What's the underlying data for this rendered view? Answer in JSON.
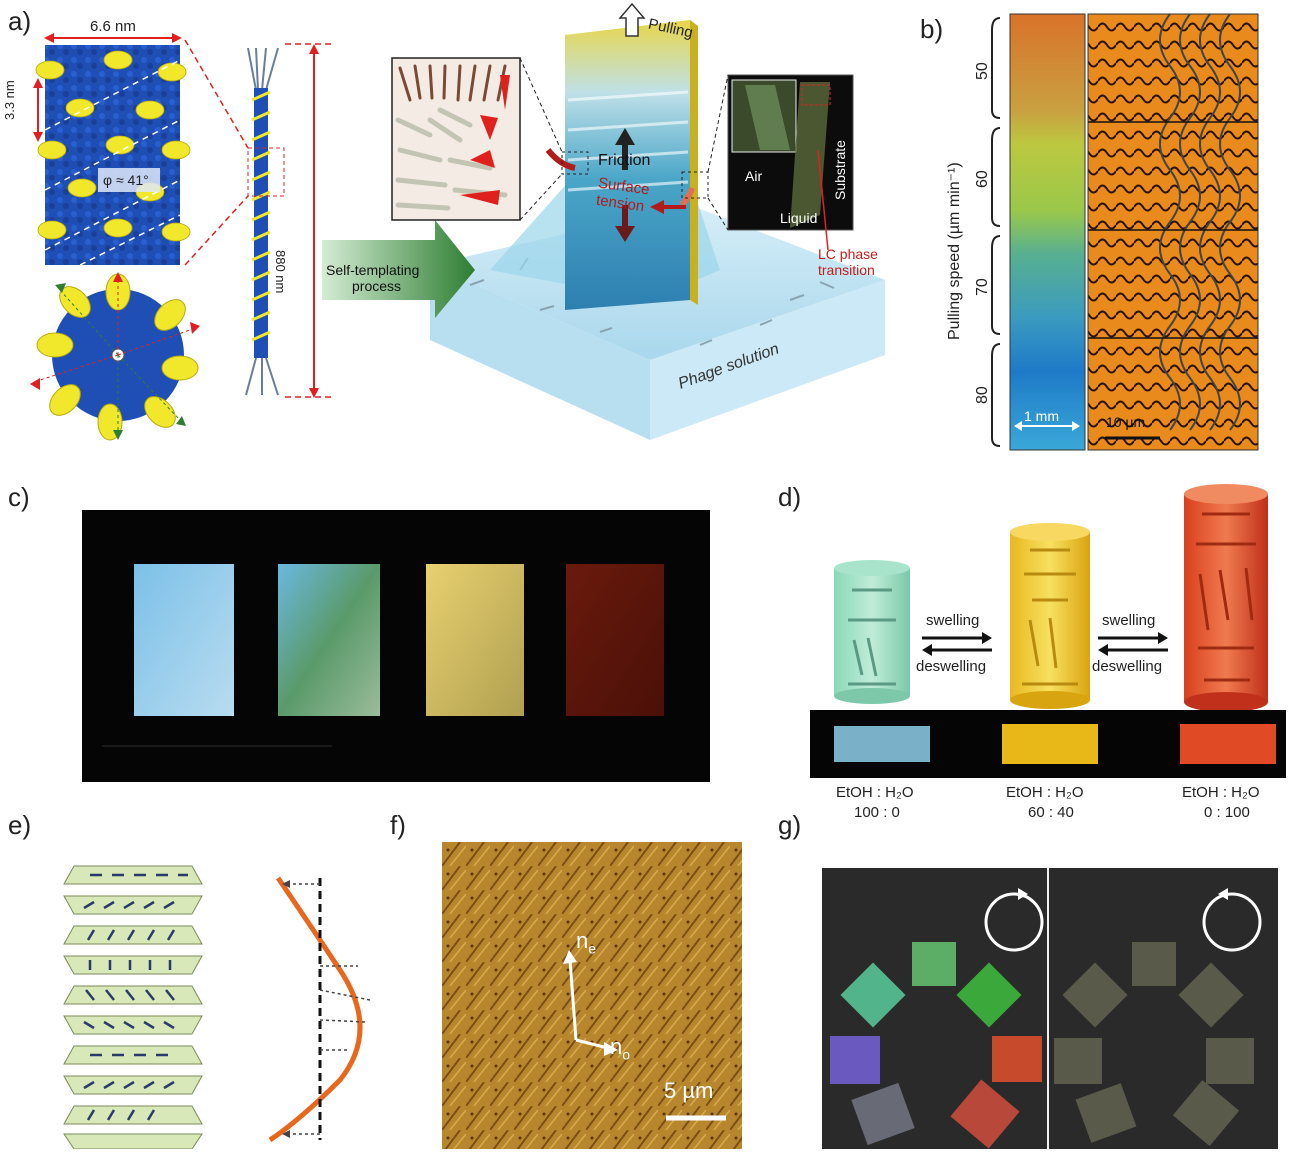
{
  "figure": {
    "panel_labels": [
      "a)",
      "b)",
      "c)",
      "d)",
      "e)",
      "f)",
      "g)"
    ],
    "a": {
      "width_label": "6.6 nm",
      "pitch_label": "3.3 nm",
      "angle_label": "φ ≈ 41°",
      "length_label": "880 nm",
      "pulling_label": "Pulling",
      "friction_label": "Friction",
      "surface_tension_label_1": "Surface",
      "surface_tension_label_2": "tension",
      "self_templating_1": "Self-templating",
      "self_templating_2": "process",
      "phage_solution_label": "Phage solution",
      "air_label": "Air",
      "liquid_label": "Liquid",
      "substrate_label": "Substrate",
      "lc_transition_1": "LC phase",
      "lc_transition_2": "transition"
    },
    "b": {
      "ylabel": "Pulling speed (µm min⁻¹)",
      "speeds": [
        "50",
        "60",
        "70",
        "80"
      ],
      "scale_left": "1 mm",
      "scale_right": "10 µm"
    },
    "d": {
      "swelling": "swelling",
      "deswelling": "deswelling",
      "solvents": [
        {
          "line1": "EtOH : H₂O",
          "line2": "100 : 0"
        },
        {
          "line1": "EtOH : H₂O",
          "line2": "60 : 40"
        },
        {
          "line1": "EtOH : H₂O",
          "line2": "0 : 100"
        }
      ]
    },
    "f": {
      "ne_label": "n",
      "ne_sub": "e",
      "no_label": "n",
      "no_sub": "o",
      "scale_label": "5 µm"
    },
    "colors": {
      "phage_blue": "#1f4fb4",
      "coat_yellow": "#f1e82c",
      "red_dashed": "#e02020",
      "arrow_green": "#2e7d32",
      "film_red": "#c0201a",
      "helix_orange": "#e8671c"
    }
  }
}
